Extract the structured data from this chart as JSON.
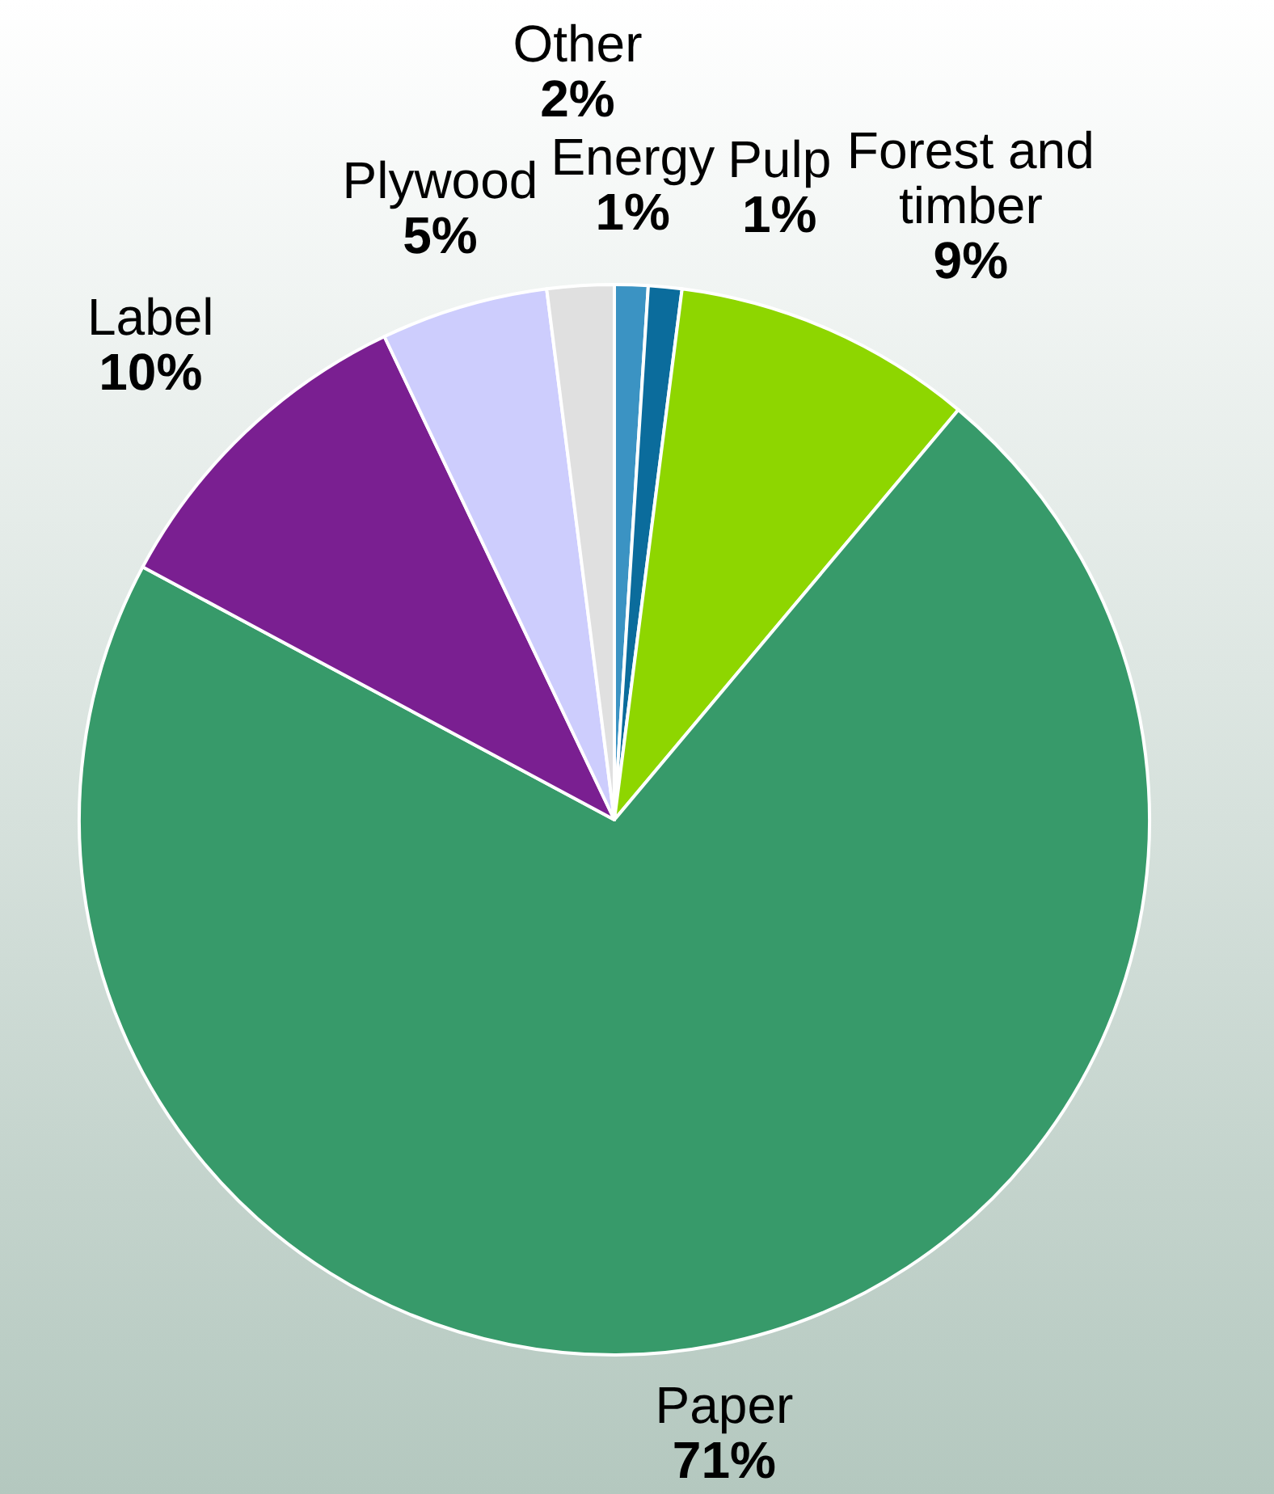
{
  "chart_data": {
    "type": "pie",
    "categories": [
      "Energy",
      "Pulp",
      "Forest and timber",
      "Paper",
      "Label",
      "Plywood",
      "Other"
    ],
    "values": [
      1,
      1,
      9,
      71,
      10,
      5,
      2
    ],
    "value_labels": [
      "1%",
      "1%",
      "9%",
      "71%",
      "10%",
      "5%",
      "2%"
    ],
    "colors": [
      "#3b93c3",
      "#0b6c9c",
      "#8ed600",
      "#379a6a",
      "#7a1f91",
      "#cdcdfd",
      "#e0e0e0"
    ],
    "legend": false
  }
}
